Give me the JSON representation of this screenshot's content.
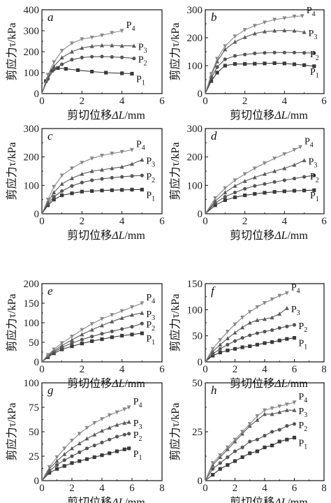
{
  "xlabel": "剪切位移",
  "xlabel_var": "ΔL",
  "xlabel_unit": "/mm",
  "ylabel": "剪应力τ/kPa",
  "series_labels": [
    "P",
    "P",
    "P",
    "P"
  ],
  "series_subs": [
    "1",
    "2",
    "3",
    "4"
  ],
  "chart_data": [
    {
      "type": "line",
      "panel": "a",
      "xlim": [
        0,
        6
      ],
      "ylim": [
        0,
        400
      ],
      "xticks": [
        0,
        2,
        4,
        6
      ],
      "yticks": [
        0,
        100,
        200,
        300,
        400
      ],
      "series": [
        {
          "x": [
            0,
            0.2,
            0.5,
            0.8,
            1.2,
            1.8,
            2.5,
            3.2,
            4.0,
            4.5
          ],
          "y": [
            0,
            60,
            110,
            122,
            118,
            112,
            105,
            100,
            97,
            95
          ]
        },
        {
          "x": [
            0,
            0.3,
            0.6,
            1.0,
            1.5,
            2.0,
            2.5,
            3.0,
            3.5,
            4.0,
            4.6
          ],
          "y": [
            0,
            70,
            115,
            140,
            162,
            172,
            176,
            177,
            175,
            173,
            168
          ]
        },
        {
          "x": [
            0,
            0.3,
            0.6,
            1.0,
            1.5,
            2.0,
            2.5,
            3.0,
            3.5,
            4.0,
            4.6
          ],
          "y": [
            0,
            80,
            130,
            172,
            200,
            218,
            226,
            230,
            230,
            228,
            228
          ]
        },
        {
          "x": [
            0,
            0.3,
            0.6,
            1.0,
            1.5,
            2.0,
            2.5,
            3.0,
            3.5,
            4.0
          ],
          "y": [
            0,
            90,
            150,
            205,
            240,
            260,
            268,
            278,
            290,
            300
          ]
        }
      ]
    },
    {
      "type": "line",
      "panel": "b",
      "xlim": [
        0,
        6
      ],
      "ylim": [
        0,
        300
      ],
      "xticks": [
        0,
        2,
        4,
        6
      ],
      "yticks": [
        0,
        100,
        200,
        300
      ],
      "series": [
        {
          "x": [
            0,
            0.3,
            0.6,
            1.0,
            1.5,
            2.0,
            2.5,
            3.0,
            3.5,
            4.0,
            4.5,
            5.0,
            5.5
          ],
          "y": [
            0,
            45,
            75,
            100,
            106,
            106,
            107,
            108,
            109,
            108,
            105,
            102,
            98
          ]
        },
        {
          "x": [
            0,
            0.3,
            0.6,
            1.0,
            1.5,
            2.0,
            2.5,
            3.0,
            3.5,
            4.0,
            4.5,
            5.0,
            5.5
          ],
          "y": [
            0,
            55,
            95,
            123,
            135,
            140,
            144,
            146,
            147,
            147,
            147,
            146,
            145
          ]
        },
        {
          "x": [
            0,
            0.3,
            0.6,
            1.0,
            1.5,
            2.0,
            2.5,
            3.0,
            3.5,
            4.0,
            4.5,
            5.0
          ],
          "y": [
            0,
            65,
            115,
            158,
            185,
            202,
            215,
            222,
            225,
            226,
            225,
            220
          ]
        },
        {
          "x": [
            0,
            0.3,
            0.6,
            1.0,
            1.5,
            2.0,
            2.5,
            3.0,
            3.5,
            4.0,
            4.5,
            4.9
          ],
          "y": [
            0,
            70,
            125,
            170,
            205,
            228,
            243,
            255,
            265,
            270,
            276,
            278
          ]
        }
      ]
    },
    {
      "type": "line",
      "panel": "c",
      "xlim": [
        0,
        6
      ],
      "ylim": [
        0,
        300
      ],
      "xticks": [
        0,
        2,
        4,
        6
      ],
      "yticks": [
        0,
        100,
        200,
        300
      ],
      "series": [
        {
          "x": [
            0,
            0.3,
            0.6,
            1.0,
            1.5,
            2.0,
            2.5,
            3.0,
            3.5,
            4.0,
            4.5,
            5.0
          ],
          "y": [
            0,
            30,
            50,
            65,
            72,
            78,
            80,
            82,
            83,
            84,
            85,
            85
          ]
        },
        {
          "x": [
            0,
            0.3,
            0.6,
            1.0,
            1.5,
            2.0,
            2.5,
            3.0,
            3.5,
            4.0,
            4.5,
            5.0
          ],
          "y": [
            0,
            35,
            60,
            80,
            98,
            110,
            118,
            123,
            127,
            130,
            133,
            135
          ]
        },
        {
          "x": [
            0,
            0.3,
            0.6,
            1.0,
            1.5,
            2.0,
            2.5,
            3.0,
            3.5,
            4.0,
            4.5,
            5.0
          ],
          "y": [
            0,
            40,
            75,
            105,
            125,
            140,
            150,
            155,
            160,
            165,
            175,
            190
          ]
        },
        {
          "x": [
            0,
            0.3,
            0.6,
            1.0,
            1.5,
            2.0,
            2.5,
            3.0,
            3.5,
            4.0,
            4.5
          ],
          "y": [
            0,
            50,
            95,
            135,
            160,
            180,
            195,
            205,
            212,
            218,
            225
          ]
        }
      ]
    },
    {
      "type": "line",
      "panel": "d",
      "xlim": [
        0,
        6
      ],
      "ylim": [
        0,
        300
      ],
      "xticks": [
        0,
        2,
        4,
        6
      ],
      "yticks": [
        0,
        100,
        200,
        300
      ],
      "series": [
        {
          "x": [
            0,
            0.5,
            1.0,
            1.5,
            2.0,
            2.5,
            3.0,
            3.5,
            4.0,
            4.5,
            5.0,
            5.5
          ],
          "y": [
            0,
            30,
            48,
            58,
            65,
            70,
            74,
            77,
            79,
            81,
            82,
            83
          ]
        },
        {
          "x": [
            0,
            0.5,
            1.0,
            1.5,
            2.0,
            2.5,
            3.0,
            3.5,
            4.0,
            4.5,
            5.0,
            5.5
          ],
          "y": [
            0,
            38,
            60,
            75,
            88,
            98,
            105,
            112,
            118,
            124,
            130,
            135
          ]
        },
        {
          "x": [
            0,
            0.5,
            1.0,
            1.5,
            2.0,
            2.5,
            3.0,
            3.5,
            4.0,
            4.5,
            5.0
          ],
          "y": [
            0,
            45,
            75,
            98,
            115,
            128,
            140,
            150,
            160,
            172,
            188
          ]
        },
        {
          "x": [
            0,
            0.5,
            1.0,
            1.5,
            2.0,
            2.5,
            3.0,
            3.5,
            4.0,
            4.5,
            4.8
          ],
          "y": [
            0,
            55,
            90,
            118,
            140,
            160,
            178,
            195,
            210,
            225,
            235
          ]
        }
      ]
    },
    {
      "type": "line",
      "panel": "e",
      "xlim": [
        0,
        6
      ],
      "ylim": [
        0,
        200
      ],
      "xticks": [
        0,
        2,
        4,
        6
      ],
      "yticks": [
        0,
        50,
        100,
        150,
        200
      ],
      "series": [
        {
          "x": [
            0,
            0.3,
            0.6,
            1.0,
            1.5,
            2.0,
            2.5,
            3.0,
            3.5,
            4.0,
            4.5,
            5.0
          ],
          "y": [
            0,
            12,
            22,
            32,
            40,
            47,
            53,
            58,
            63,
            67,
            70,
            73
          ]
        },
        {
          "x": [
            0,
            0.3,
            0.6,
            1.0,
            1.5,
            2.0,
            2.5,
            3.0,
            3.5,
            4.0,
            4.5,
            5.0
          ],
          "y": [
            0,
            14,
            25,
            37,
            48,
            57,
            65,
            72,
            78,
            84,
            90,
            98
          ]
        },
        {
          "x": [
            0,
            0.3,
            0.6,
            1.0,
            1.5,
            2.0,
            2.5,
            3.0,
            3.5,
            4.0,
            4.5,
            5.0
          ],
          "y": [
            0,
            16,
            28,
            42,
            56,
            70,
            82,
            93,
            103,
            112,
            120,
            125
          ]
        },
        {
          "x": [
            0,
            0.3,
            0.6,
            1.0,
            1.5,
            2.0,
            2.5,
            3.0,
            3.5,
            4.0,
            4.5,
            5.0
          ],
          "y": [
            0,
            18,
            32,
            48,
            65,
            82,
            97,
            110,
            120,
            130,
            140,
            150
          ]
        }
      ]
    },
    {
      "type": "line",
      "panel": "f",
      "xlim": [
        0,
        8
      ],
      "ylim": [
        0,
        150
      ],
      "xticks": [
        0,
        2,
        4,
        6,
        8
      ],
      "yticks": [
        0,
        50,
        100,
        150
      ],
      "series": [
        {
          "x": [
            0,
            0.5,
            1.0,
            1.5,
            2.0,
            2.5,
            3.0,
            3.5,
            4.0,
            4.5,
            5.0,
            5.5,
            6.0
          ],
          "y": [
            0,
            12,
            18,
            22,
            25,
            28,
            30,
            33,
            36,
            38,
            41,
            44,
            46
          ]
        },
        {
          "x": [
            0,
            0.5,
            1.0,
            1.5,
            2.0,
            2.5,
            3.0,
            3.5,
            4.0,
            4.5,
            5.0,
            5.5,
            6.0
          ],
          "y": [
            0,
            15,
            25,
            33,
            40,
            46,
            51,
            55,
            58,
            61,
            65,
            68,
            71
          ]
        },
        {
          "x": [
            0,
            0.5,
            1.0,
            1.5,
            2.0,
            2.5,
            3.0,
            3.5,
            4.0,
            4.5,
            5.0,
            5.5
          ],
          "y": [
            0,
            20,
            33,
            45,
            56,
            66,
            75,
            80,
            82,
            85,
            92,
            103
          ]
        },
        {
          "x": [
            0,
            0.5,
            1.0,
            1.5,
            2.0,
            2.5,
            3.0,
            3.5,
            4.0,
            4.5,
            5.0,
            5.5
          ],
          "y": [
            0,
            25,
            42,
            58,
            72,
            85,
            96,
            105,
            113,
            120,
            127,
            132
          ]
        }
      ]
    },
    {
      "type": "line",
      "panel": "g",
      "xlim": [
        0,
        8
      ],
      "ylim": [
        0,
        100
      ],
      "xticks": [
        0,
        2,
        4,
        6,
        8
      ],
      "yticks": [
        0,
        25,
        50,
        75,
        100
      ],
      "series": [
        {
          "x": [
            0,
            0.5,
            1.0,
            1.5,
            2.0,
            2.5,
            3.0,
            3.5,
            4.0,
            4.5,
            5.0,
            5.5,
            5.8
          ],
          "y": [
            0,
            8,
            12,
            15,
            18,
            20,
            22,
            24,
            26,
            28,
            30,
            32,
            33
          ]
        },
        {
          "x": [
            0,
            0.5,
            1.0,
            1.5,
            2.0,
            2.5,
            3.0,
            3.5,
            4.0,
            4.5,
            5.0,
            5.5,
            5.8
          ],
          "y": [
            0,
            10,
            16,
            21,
            25,
            29,
            33,
            36,
            39,
            42,
            45,
            47,
            48
          ]
        },
        {
          "x": [
            0,
            0.5,
            1.0,
            1.5,
            2.0,
            2.5,
            3.0,
            3.5,
            4.0,
            4.5,
            5.0,
            5.5,
            5.8
          ],
          "y": [
            0,
            12,
            20,
            27,
            33,
            38,
            43,
            47,
            51,
            54,
            57,
            59,
            60
          ]
        },
        {
          "x": [
            0,
            0.5,
            1.0,
            1.5,
            2.0,
            2.5,
            3.0,
            3.5,
            4.0,
            4.5,
            5.0,
            5.5,
            5.8
          ],
          "y": [
            0,
            14,
            24,
            33,
            41,
            48,
            54,
            59,
            63,
            67,
            70,
            73,
            75
          ]
        }
      ]
    },
    {
      "type": "line",
      "panel": "h",
      "xlim": [
        0,
        8
      ],
      "ylim": [
        0,
        50
      ],
      "xticks": [
        0,
        2,
        4,
        6,
        8
      ],
      "yticks": [
        0,
        25,
        50
      ],
      "series": [
        {
          "x": [
            0,
            0.5,
            1.0,
            1.5,
            2.0,
            2.5,
            3.0,
            3.5,
            4.0,
            4.5,
            5.0,
            5.5,
            6.0
          ],
          "y": [
            0,
            3,
            6,
            8,
            10,
            12,
            14,
            15,
            17,
            18,
            20,
            21,
            22
          ]
        },
        {
          "x": [
            0,
            0.5,
            1.0,
            1.5,
            2.0,
            2.5,
            3.0,
            3.5,
            4.0,
            4.5,
            5.0,
            5.5,
            6.0
          ],
          "y": [
            0,
            6,
            9,
            12,
            15,
            17,
            20,
            21,
            23,
            25,
            26,
            28,
            29
          ]
        },
        {
          "x": [
            0,
            0.5,
            1.0,
            1.5,
            2.0,
            2.5,
            3.0,
            3.5,
            4.0,
            4.5,
            5.0,
            5.5,
            6.0
          ],
          "y": [
            0,
            8,
            12,
            16,
            20,
            24,
            28,
            31,
            34,
            34,
            35,
            36,
            36
          ]
        },
        {
          "x": [
            0,
            0.5,
            1.0,
            1.5,
            2.0,
            2.5,
            3.0,
            3.5,
            4.0,
            4.5,
            5.0,
            5.5,
            6.0
          ],
          "y": [
            0,
            9,
            13,
            17,
            21,
            25,
            29,
            33,
            36,
            37,
            38,
            39,
            40
          ]
        }
      ]
    }
  ]
}
